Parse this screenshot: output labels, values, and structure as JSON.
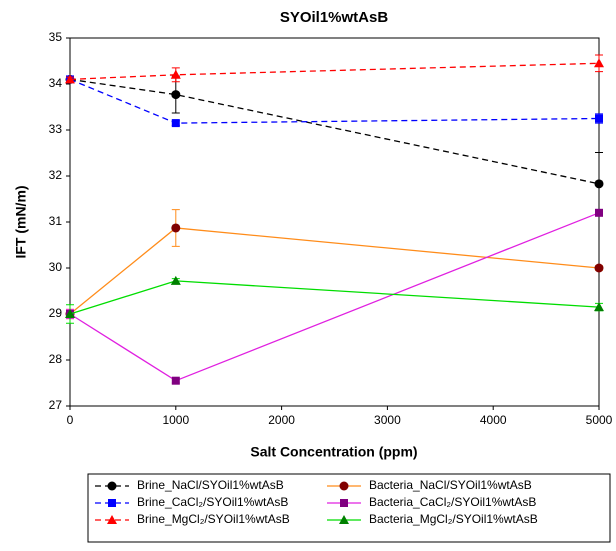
{
  "chart_data": {
    "type": "line",
    "title": "SYOil1%wtAsB",
    "x_label": "Salt Concentration (ppm)",
    "y_label": "IFT (mN/m)",
    "x": [
      0,
      1000,
      5000
    ],
    "xlim": [
      0,
      5000
    ],
    "xticks": [
      0,
      1000,
      2000,
      3000,
      4000,
      5000
    ],
    "ylim": [
      27,
      35
    ],
    "yticks": [
      27,
      28,
      29,
      30,
      31,
      32,
      33,
      34,
      35
    ],
    "series": [
      {
        "name": "Brine_NaCl/SYOil1%wtAsB",
        "color": "#000000",
        "marker_color": "#000000",
        "marker": "circle",
        "linestyle": "dashed",
        "values": [
          34.1,
          33.77,
          31.83
        ],
        "errors": [
          0.05,
          0.4,
          0.68
        ]
      },
      {
        "name": "Brine_CaCl₂/SYOil1%wtAsB",
        "color": "#0000ff",
        "marker_color": "#0000ff",
        "marker": "square",
        "linestyle": "dashed",
        "values": [
          34.1,
          33.15,
          33.25
        ],
        "errors": [
          0.05,
          0.05,
          0.1
        ]
      },
      {
        "name": "Brine_MgCl₂/SYOil1%wtAsB",
        "color": "#ff0000",
        "marker_color": "#ff0000",
        "marker": "triangle",
        "linestyle": "dashed",
        "values": [
          34.1,
          34.2,
          34.45
        ],
        "errors": [
          0.05,
          0.15,
          0.18
        ]
      },
      {
        "name": "Bacteria_NaCl/SYOil1%wtAsB",
        "color": "#ff8c1a",
        "marker_color": "#800000",
        "marker": "circle",
        "linestyle": "solid",
        "values": [
          29.0,
          30.87,
          30.0
        ],
        "errors": [
          0.1,
          0.4,
          0.05
        ]
      },
      {
        "name": "Bacteria_CaCl₂/SYOil1%wtAsB",
        "color": "#e020e0",
        "marker_color": "#800080",
        "marker": "square",
        "linestyle": "solid",
        "values": [
          29.0,
          27.55,
          31.2
        ],
        "errors": [
          0.1,
          0.05,
          0.05
        ]
      },
      {
        "name": "Bacteria_MgCl₂/SYOil1%wtAsB",
        "color": "#00dd00",
        "marker_color": "#008000",
        "marker": "triangle",
        "linestyle": "solid",
        "values": [
          29.0,
          29.72,
          29.15
        ],
        "errors": [
          0.2,
          0.05,
          0.08
        ]
      }
    ]
  }
}
